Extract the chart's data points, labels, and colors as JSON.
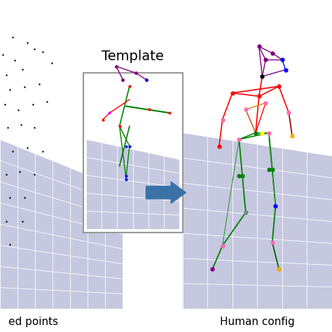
{
  "left_label": "ed points",
  "right_label": "Human config",
  "center_label": "Template",
  "bg_color": "#ffffff",
  "panel_bg": "#c5c8df",
  "grid_color": "#ffffff",
  "arrow_color": "#3a72a8",
  "scattered_points": [
    [
      0.1,
      0.93
    ],
    [
      0.22,
      0.91
    ],
    [
      0.02,
      0.87
    ],
    [
      0.12,
      0.85
    ],
    [
      0.28,
      0.89
    ],
    [
      0.35,
      0.88
    ],
    [
      0.05,
      0.8
    ],
    [
      0.18,
      0.82
    ],
    [
      0.42,
      0.84
    ],
    [
      0.08,
      0.75
    ],
    [
      0.2,
      0.76
    ],
    [
      0.32,
      0.77
    ],
    [
      0.04,
      0.7
    ],
    [
      0.15,
      0.68
    ],
    [
      0.27,
      0.7
    ],
    [
      0.38,
      0.71
    ],
    [
      0.06,
      0.62
    ],
    [
      0.17,
      0.63
    ],
    [
      0.28,
      0.62
    ],
    [
      0.1,
      0.54
    ],
    [
      0.22,
      0.55
    ],
    [
      0.35,
      0.54
    ],
    [
      0.05,
      0.46
    ],
    [
      0.16,
      0.47
    ],
    [
      0.28,
      0.46
    ],
    [
      0.08,
      0.38
    ],
    [
      0.2,
      0.38
    ],
    [
      0.05,
      0.3
    ],
    [
      0.18,
      0.3
    ],
    [
      0.08,
      0.22
    ]
  ]
}
